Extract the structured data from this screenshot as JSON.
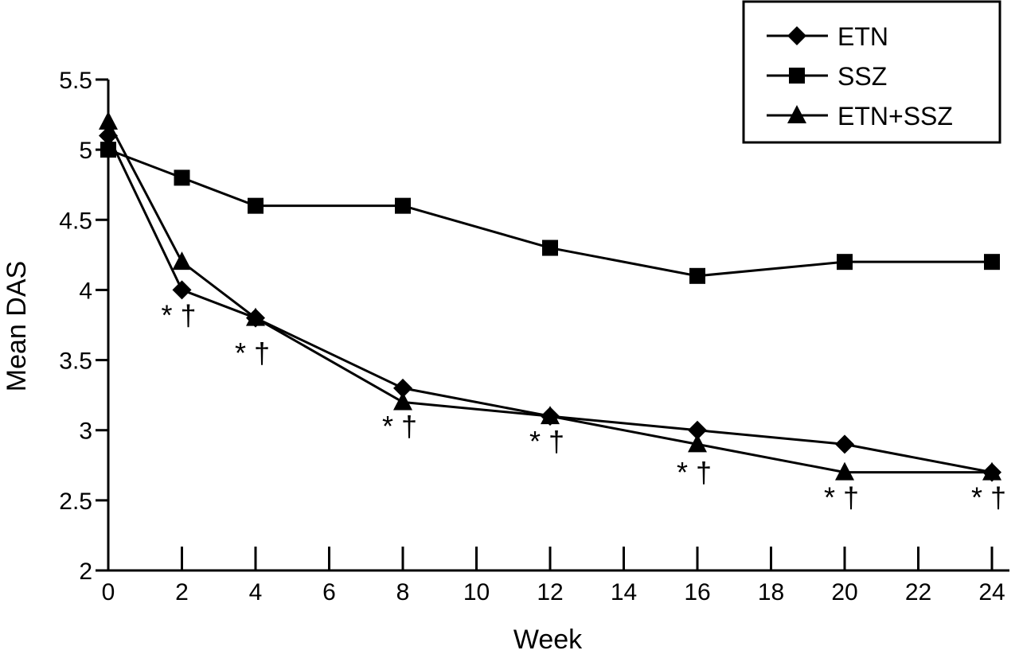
{
  "chart_data": {
    "type": "line",
    "xlabel": "Week",
    "ylabel": "Mean DAS",
    "xlim": [
      0,
      24
    ],
    "ylim": [
      2,
      5.5
    ],
    "xticks": [
      0,
      2,
      4,
      6,
      8,
      10,
      12,
      14,
      16,
      18,
      20,
      22,
      24
    ],
    "yticks": [
      2,
      2.5,
      3,
      3.5,
      4,
      4.5,
      5,
      5.5
    ],
    "ytick_labels": [
      "2",
      "2.5",
      "3",
      "3.5",
      "4",
      "4.5",
      "5",
      "5.5"
    ],
    "grid": false,
    "legend_position": "top-right",
    "x": [
      0,
      2,
      4,
      8,
      12,
      16,
      20,
      24
    ],
    "series": [
      {
        "name": "ETN",
        "marker": "diamond",
        "values": [
          5.1,
          4.0,
          3.8,
          3.3,
          3.1,
          3.0,
          2.9,
          2.7
        ]
      },
      {
        "name": "SSZ",
        "marker": "square",
        "values": [
          5.0,
          4.8,
          4.6,
          4.6,
          4.3,
          4.1,
          4.2,
          4.2
        ]
      },
      {
        "name": "ETN+SSZ",
        "marker": "triangle",
        "values": [
          5.2,
          4.2,
          3.8,
          3.2,
          3.1,
          2.9,
          2.7,
          2.7
        ]
      }
    ],
    "annotations": [
      {
        "x": 2,
        "y": 3.75,
        "text": "* †"
      },
      {
        "x": 4,
        "y": 3.48,
        "text": "* †"
      },
      {
        "x": 8,
        "y": 2.96,
        "text": "* †"
      },
      {
        "x": 12,
        "y": 2.85,
        "text": "* †"
      },
      {
        "x": 16,
        "y": 2.63,
        "text": "* †"
      },
      {
        "x": 20,
        "y": 2.45,
        "text": "* †"
      },
      {
        "x": 24,
        "y": 2.45,
        "text": "* †"
      }
    ]
  }
}
